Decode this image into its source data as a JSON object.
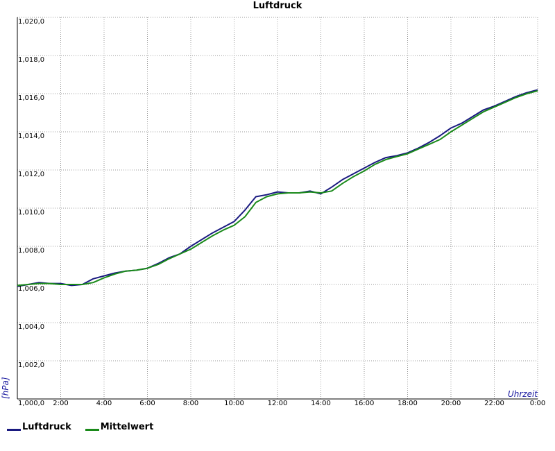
{
  "chart_data": {
    "type": "line",
    "title": "Luftdruck",
    "xlabel": "Uhrzeit",
    "ylabel": "[hPa]",
    "xlim": [
      0,
      24
    ],
    "ylim": [
      1000,
      1020
    ],
    "grid": true,
    "legend_position": "bottom-left",
    "x_ticks": [
      "2:00",
      "4:00",
      "6:00",
      "8:00",
      "10:00",
      "12:00",
      "14:00",
      "16:00",
      "18:00",
      "20:00",
      "22:00",
      "0:00"
    ],
    "y_ticks": [
      "1,000,0",
      "1,002,0",
      "1,004,0",
      "1,006,0",
      "1,008,0",
      "1,010,0",
      "1,012,0",
      "1,014,0",
      "1,016,0",
      "1,018,0",
      "1,020,0"
    ],
    "series": [
      {
        "name": "Luftdruck",
        "color": "#1a1a80",
        "x": [
          0,
          0.5,
          1,
          1.5,
          2,
          2.5,
          3,
          3.5,
          4,
          4.5,
          5,
          5.5,
          6,
          6.5,
          7,
          7.5,
          8,
          8.5,
          9,
          9.5,
          10,
          10.5,
          11,
          11.5,
          12,
          12.5,
          13,
          13.5,
          14,
          14.5,
          15,
          15.5,
          16,
          16.5,
          17,
          17.5,
          18,
          18.5,
          19,
          19.5,
          20,
          20.5,
          21,
          21.5,
          22,
          22.5,
          23,
          23.5,
          24
        ],
        "values": [
          1005.9,
          1006.0,
          1006.1,
          1006.05,
          1006.05,
          1005.95,
          1006.0,
          1006.3,
          1006.45,
          1006.6,
          1006.7,
          1006.75,
          1006.85,
          1007.1,
          1007.4,
          1007.6,
          1008.0,
          1008.35,
          1008.7,
          1009.0,
          1009.3,
          1009.9,
          1010.6,
          1010.7,
          1010.85,
          1010.8,
          1010.8,
          1010.9,
          1010.75,
          1011.1,
          1011.5,
          1011.8,
          1012.1,
          1012.4,
          1012.65,
          1012.75,
          1012.9,
          1013.15,
          1013.45,
          1013.8,
          1014.2,
          1014.45,
          1014.8,
          1015.15,
          1015.35,
          1015.6,
          1015.85,
          1016.05,
          1016.2
        ]
      },
      {
        "name": "Mittelwert",
        "color": "#1a8a1a",
        "x": [
          0,
          0.5,
          1,
          1.5,
          2,
          2.5,
          3,
          3.5,
          4,
          4.5,
          5,
          5.5,
          6,
          6.5,
          7,
          7.5,
          8,
          8.5,
          9,
          9.5,
          10,
          10.5,
          11,
          11.5,
          12,
          12.5,
          13,
          13.5,
          14,
          14.5,
          15,
          15.5,
          16,
          16.5,
          17,
          17.5,
          18,
          18.5,
          19,
          19.5,
          20,
          20.5,
          21,
          21.5,
          22,
          22.5,
          23,
          23.5,
          24
        ],
        "values": [
          1005.95,
          1006.0,
          1006.05,
          1006.05,
          1006.0,
          1006.0,
          1006.0,
          1006.1,
          1006.35,
          1006.55,
          1006.7,
          1006.75,
          1006.85,
          1007.05,
          1007.35,
          1007.6,
          1007.85,
          1008.2,
          1008.55,
          1008.85,
          1009.1,
          1009.55,
          1010.3,
          1010.6,
          1010.75,
          1010.8,
          1010.8,
          1010.85,
          1010.8,
          1010.9,
          1011.3,
          1011.65,
          1011.95,
          1012.3,
          1012.55,
          1012.7,
          1012.85,
          1013.1,
          1013.35,
          1013.6,
          1014.0,
          1014.35,
          1014.7,
          1015.05,
          1015.3,
          1015.55,
          1015.8,
          1016.0,
          1016.15
        ]
      }
    ]
  }
}
